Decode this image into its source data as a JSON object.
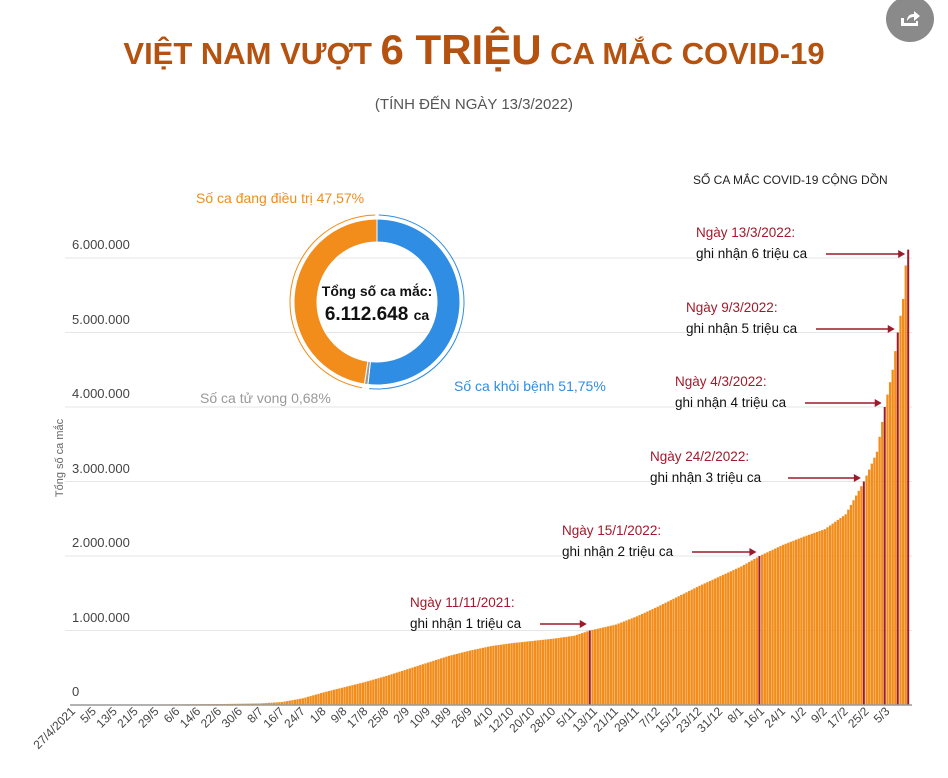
{
  "header": {
    "title_pre": "VIỆT NAM VƯỢT ",
    "title_big": "6 TRIỆU",
    "title_post": " CA MẮC COVID-19",
    "subtitle": "(TÍNH ĐẾN NGÀY 13/3/2022)",
    "share_icon": "share-icon"
  },
  "donut": {
    "center_label": "Tổng số ca mắc:",
    "center_value": "6.112.648",
    "center_unit": "ca",
    "segments": [
      {
        "label": "Số ca khỏi bệnh 51,75%",
        "value": 51.75,
        "color": "#2f8de4"
      },
      {
        "label": "Số ca tử vong 0,68%",
        "value": 0.68,
        "color": "#999999"
      },
      {
        "label": "Số ca đang điều trị 47,57%",
        "value": 47.57,
        "color": "#f28c1a"
      }
    ]
  },
  "chart_data": {
    "type": "bar",
    "title": "SỐ CA MẮC COVID-19 CỘNG DỒN",
    "ylabel": "Tổng số ca mắc",
    "ylim": [
      0,
      6000000
    ],
    "yticks": [
      "0",
      "1.000.000",
      "2.000.000",
      "3.000.000",
      "4.000.000",
      "5.000.000",
      "6.000.000"
    ],
    "ytick_values": [
      0,
      1000000,
      2000000,
      3000000,
      4000000,
      5000000,
      6000000
    ],
    "start_date": "27/4/2021",
    "days": 321,
    "xticks": [
      "27/4/2021",
      "5/5",
      "13/5",
      "21/5",
      "29/5",
      "6/6",
      "14/6",
      "22/6",
      "30/6",
      "8/7",
      "16/7",
      "24/7",
      "1/8",
      "9/8",
      "17/8",
      "25/8",
      "2/9",
      "10/9",
      "18/9",
      "26/9",
      "4/10",
      "12/10",
      "20/10",
      "28/10",
      "5/11",
      "13/11",
      "21/11",
      "29/11",
      "7/12",
      "15/12",
      "23/12",
      "31/12",
      "8/1",
      "16/1",
      "24/1",
      "1/2",
      "9/2",
      "17/2",
      "25/2",
      "5/3"
    ],
    "tick_every_days": 8,
    "bar_color": "#f28c1a",
    "highlight_color": "#9b1b2a",
    "cumulative_at_day": [
      [
        0,
        3000
      ],
      [
        8,
        3100
      ],
      [
        16,
        4000
      ],
      [
        24,
        5000
      ],
      [
        32,
        7000
      ],
      [
        40,
        9000
      ],
      [
        48,
        11000
      ],
      [
        56,
        13000
      ],
      [
        64,
        17000
      ],
      [
        72,
        22000
      ],
      [
        80,
        40000
      ],
      [
        88,
        90000
      ],
      [
        96,
        170000
      ],
      [
        104,
        240000
      ],
      [
        112,
        310000
      ],
      [
        120,
        390000
      ],
      [
        128,
        480000
      ],
      [
        136,
        570000
      ],
      [
        144,
        660000
      ],
      [
        152,
        730000
      ],
      [
        160,
        790000
      ],
      [
        168,
        830000
      ],
      [
        176,
        860000
      ],
      [
        184,
        890000
      ],
      [
        192,
        930000
      ],
      [
        198,
        1000000
      ],
      [
        208,
        1080000
      ],
      [
        216,
        1190000
      ],
      [
        224,
        1320000
      ],
      [
        232,
        1460000
      ],
      [
        240,
        1600000
      ],
      [
        248,
        1730000
      ],
      [
        256,
        1860000
      ],
      [
        263,
        2000000
      ],
      [
        272,
        2150000
      ],
      [
        280,
        2260000
      ],
      [
        288,
        2360000
      ],
      [
        296,
        2560000
      ],
      [
        303,
        3000000
      ],
      [
        308,
        3400000
      ],
      [
        311,
        4000000
      ],
      [
        314,
        4500000
      ],
      [
        316,
        5000000
      ],
      [
        318,
        5450000
      ],
      [
        319,
        5900000
      ],
      [
        320,
        6112648
      ]
    ],
    "milestones": [
      {
        "day": 198,
        "date": "Ngày 11/11/2021:",
        "text": "ghi nhận 1 triệu ca"
      },
      {
        "day": 263,
        "date": "Ngày 15/1/2022:",
        "text": "ghi nhận 2 triệu ca"
      },
      {
        "day": 303,
        "date": "Ngày 24/2/2022:",
        "text": "ghi nhận 3 triệu ca"
      },
      {
        "day": 311,
        "date": "Ngày 4/3/2022:",
        "text": "ghi nhận 4 triệu ca"
      },
      {
        "day": 316,
        "date": "Ngày 9/3/2022:",
        "text": "ghi nhận 5 triệu ca"
      },
      {
        "day": 320,
        "date": "Ngày 13/3/2022:",
        "text": "ghi nhận 6 triệu ca"
      }
    ]
  }
}
